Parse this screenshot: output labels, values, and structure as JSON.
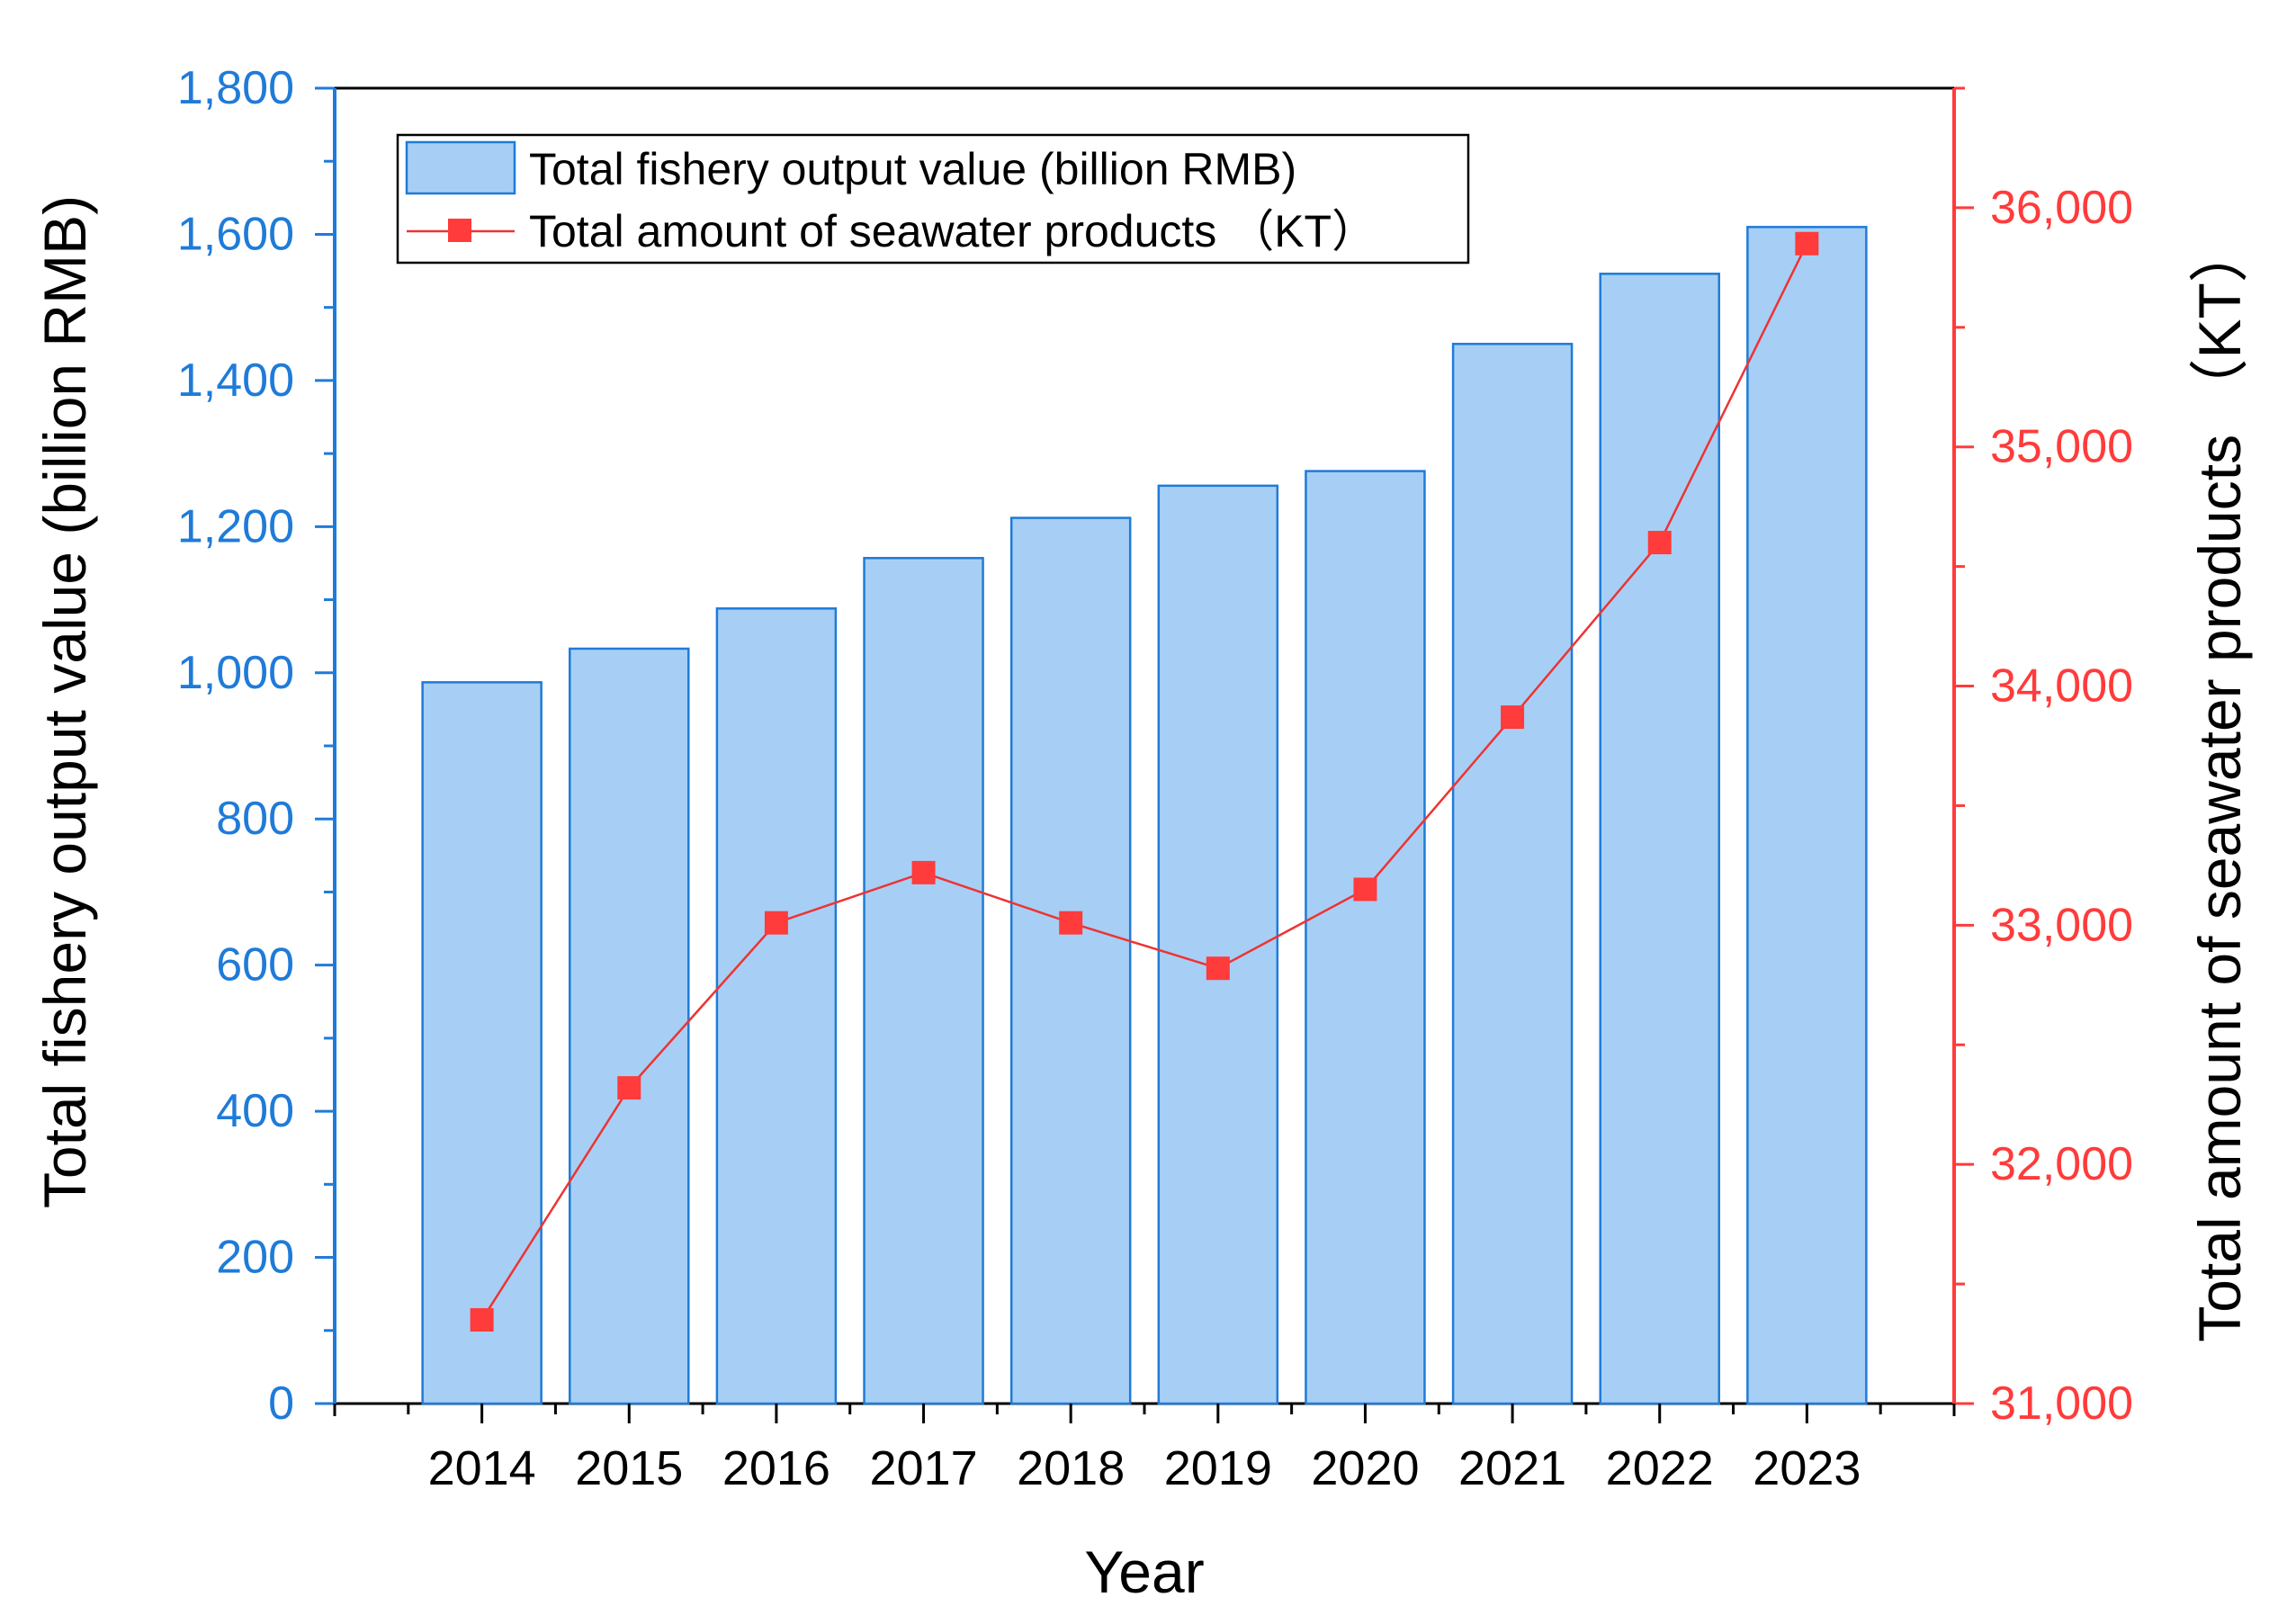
{
  "colors": {
    "left_axis": "#1F7BD8",
    "right_axis": "#FF3B3B",
    "bar_fill": "#A7CFF5",
    "bar_stroke": "#1F7BD8",
    "line": "#EE3333",
    "marker": "#FF3B3B",
    "text": "#000000"
  },
  "chart_data": {
    "type": "bar",
    "title": "",
    "xlabel": "Year",
    "ylabel": "Total fishery output value (billion  RMB)",
    "y2label": "Total amount of seawater products （KT）",
    "categories": [
      "2014",
      "2015",
      "2016",
      "2017",
      "2018",
      "2019",
      "2020",
      "2021",
      "2022",
      "2023"
    ],
    "series": [
      {
        "name": "Total fishery output value (billion  RMB)",
        "type": "bar",
        "axis": "left",
        "values": [
          987,
          1033,
          1088,
          1157,
          1212,
          1256,
          1276,
          1450,
          1546,
          1610
        ]
      },
      {
        "name": "Total amount of seawater products （KT）",
        "type": "line",
        "marker": "square",
        "axis": "right",
        "values": [
          31350,
          32320,
          33010,
          33220,
          33010,
          32820,
          33150,
          33870,
          34600,
          35850
        ]
      }
    ],
    "ylim": [
      0,
      1800
    ],
    "y_ticks": [
      0,
      200,
      400,
      600,
      800,
      1000,
      1200,
      1400,
      1600,
      1800
    ],
    "y_tick_labels": [
      "0",
      "200",
      "400",
      "600",
      "800",
      "1,000",
      "1,200",
      "1,400",
      "1,600",
      "1,800"
    ],
    "y2lim": [
      31000,
      36500
    ],
    "y2_ticks": [
      31000,
      32000,
      33000,
      34000,
      35000,
      36000
    ],
    "y2_tick_labels": [
      "31,000",
      "32,000",
      "33,000",
      "34,000",
      "35,000",
      "36,000"
    ],
    "legend_position": "top-left",
    "grid": false
  }
}
